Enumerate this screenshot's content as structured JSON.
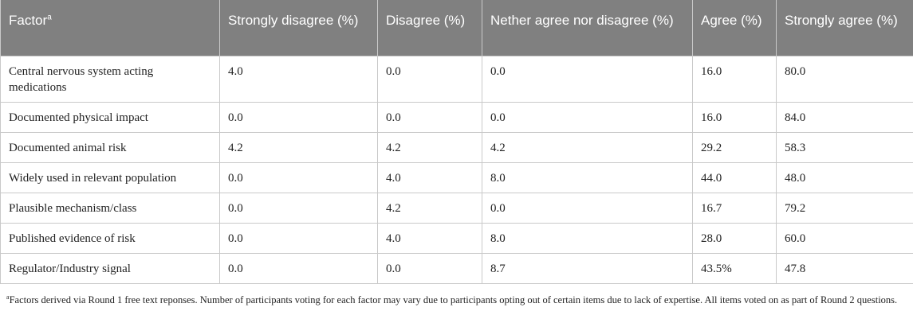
{
  "table": {
    "headers": {
      "factor": "Factor",
      "factor_sup": "a",
      "strongly_disagree": "Strongly disagree (%)",
      "disagree": "Disagree (%)",
      "neither": "Nether agree nor disagree (%)",
      "agree": "Agree (%)",
      "strongly_agree": "Strongly agree (%)"
    },
    "rows": [
      {
        "factor": "Central nervous system acting medications",
        "strongly_disagree": "4.0",
        "disagree": "0.0",
        "neither": "0.0",
        "agree": "16.0",
        "strongly_agree": "80.0"
      },
      {
        "factor": "Documented physical impact",
        "strongly_disagree": "0.0",
        "disagree": "0.0",
        "neither": "0.0",
        "agree": "16.0",
        "strongly_agree": "84.0"
      },
      {
        "factor": "Documented animal risk",
        "strongly_disagree": "4.2",
        "disagree": "4.2",
        "neither": "4.2",
        "agree": "29.2",
        "strongly_agree": "58.3"
      },
      {
        "factor": "Widely used in relevant population",
        "strongly_disagree": "0.0",
        "disagree": "4.0",
        "neither": "8.0",
        "agree": "44.0",
        "strongly_agree": "48.0"
      },
      {
        "factor": "Plausible mechanism/class",
        "strongly_disagree": "0.0",
        "disagree": "4.2",
        "neither": "0.0",
        "agree": "16.7",
        "strongly_agree": "79.2"
      },
      {
        "factor": "Published evidence of risk",
        "strongly_disagree": "0.0",
        "disagree": "4.0",
        "neither": "8.0",
        "agree": "28.0",
        "strongly_agree": "60.0"
      },
      {
        "factor": "Regulator/Industry signal",
        "strongly_disagree": "0.0",
        "disagree": "0.0",
        "neither": "8.7",
        "agree": "43.5%",
        "strongly_agree": "47.8"
      }
    ]
  },
  "footnote": {
    "marker": "a",
    "text": "Factors derived via Round 1 free text reponses. Number of participants voting for each factor may vary due to participants opting out of certain items due to lack of expertise. All items voted on as part of Round 2 questions."
  }
}
